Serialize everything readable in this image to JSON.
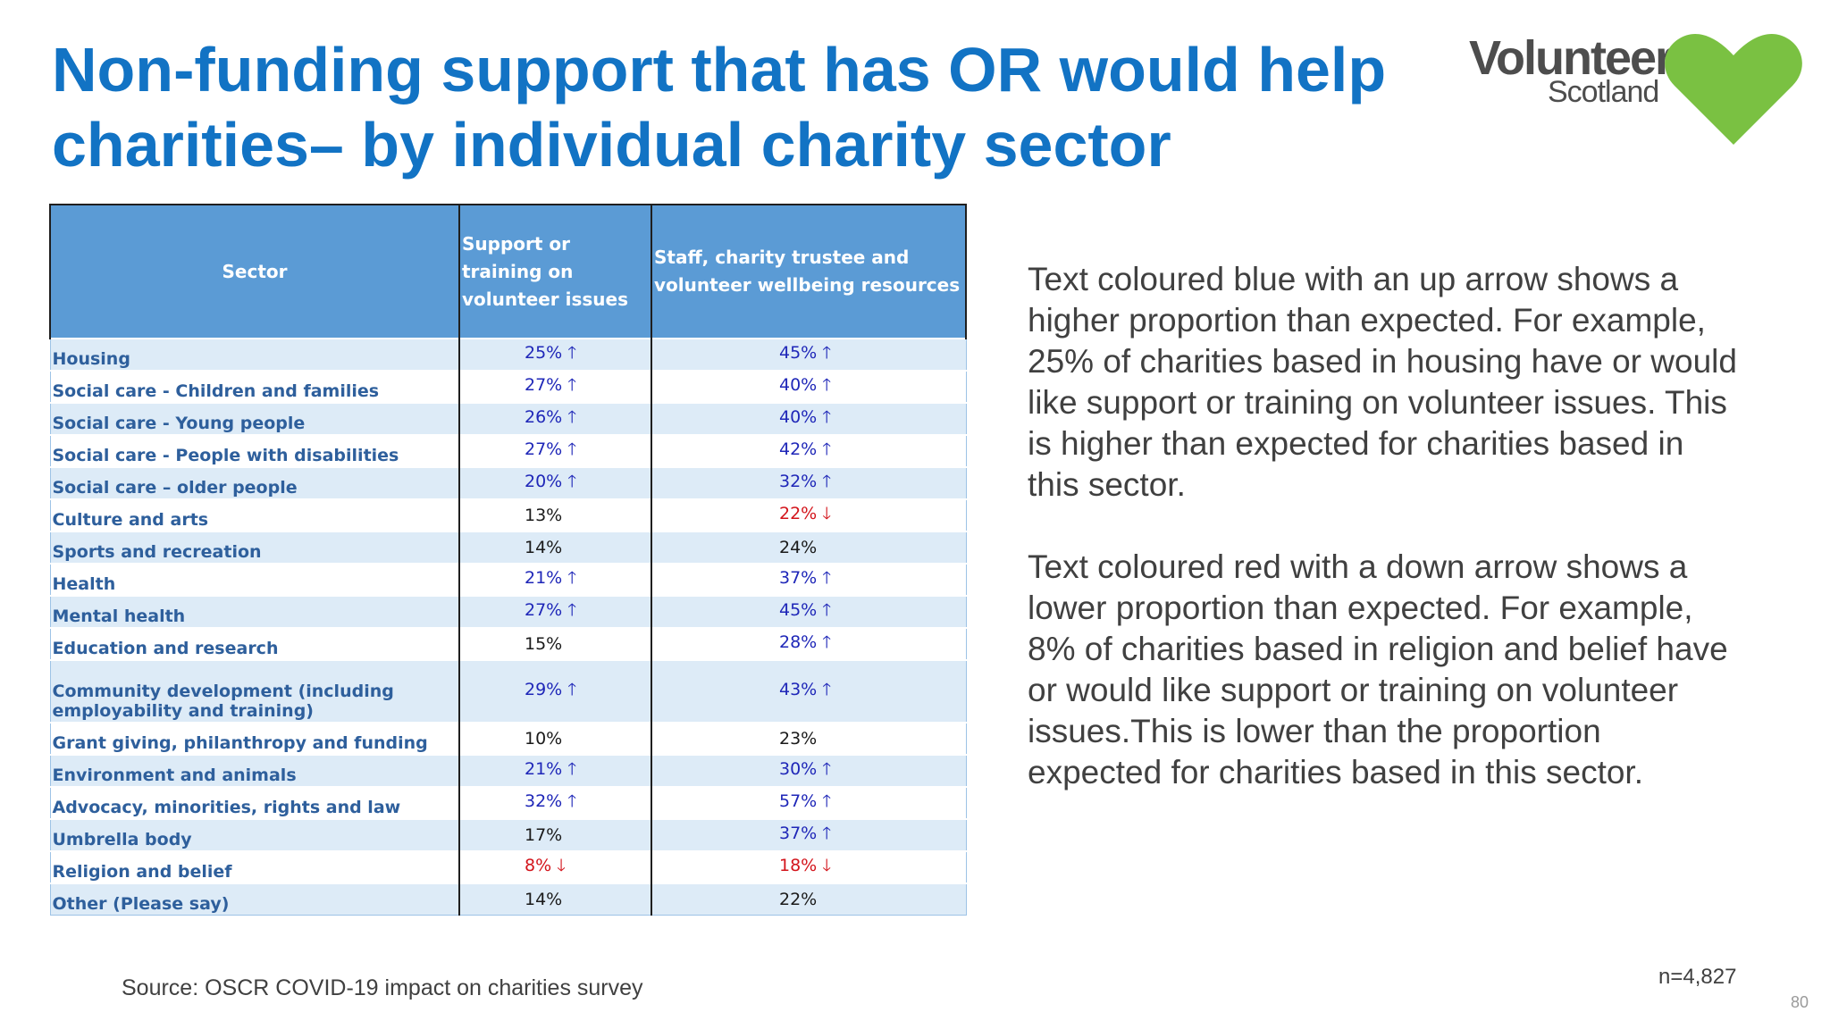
{
  "title": "Non-funding support that has OR would help charities– by individual charity sector",
  "logo": {
    "word1": "Volunteer",
    "word2": "Scotland",
    "heart_color": "#7ac142",
    "text_color": "#4d4d4d"
  },
  "colors": {
    "title": "#1273c4",
    "header_bg": "#5b9bd5",
    "band_bg": "#ddebf7",
    "higher": "#1f27b8",
    "lower": "#d3141b"
  },
  "table": {
    "headers": [
      "Sector",
      "Support or training on volunteer issues",
      "Staff, charity trustee and volunteer wellbeing resources"
    ],
    "rows": [
      {
        "sector": "Housing",
        "c2": "25% 🡑",
        "c2_dir": "up",
        "c3": "45% 🡑",
        "c3_dir": "up"
      },
      {
        "sector": "Social care - Children and families",
        "c2": "27% 🡑",
        "c2_dir": "up",
        "c3": "40% 🡑",
        "c3_dir": "up"
      },
      {
        "sector": "Social care - Young people",
        "c2": "26% 🡑",
        "c2_dir": "up",
        "c3": "40% 🡑",
        "c3_dir": "up"
      },
      {
        "sector": "Social care - People with disabilities",
        "c2": "27% 🡑",
        "c2_dir": "up",
        "c3": "42% 🡑",
        "c3_dir": "up"
      },
      {
        "sector": "Social care – older people",
        "c2": "20% 🡑",
        "c2_dir": "up",
        "c3": "32% 🡑",
        "c3_dir": "up"
      },
      {
        "sector": "Culture and arts",
        "c2": "13%",
        "c2_dir": "none",
        "c3": "22% 🡓",
        "c3_dir": "down"
      },
      {
        "sector": "Sports and recreation",
        "c2": "14%",
        "c2_dir": "none",
        "c3": "24%",
        "c3_dir": "none"
      },
      {
        "sector": "Health",
        "c2": "21% 🡑",
        "c2_dir": "up",
        "c3": "37% 🡑",
        "c3_dir": "up"
      },
      {
        "sector": "Mental health",
        "c2": "27% 🡑",
        "c2_dir": "up",
        "c3": "45% 🡑",
        "c3_dir": "up"
      },
      {
        "sector": "Education and research",
        "c2": "15%",
        "c2_dir": "none",
        "c3": "28% 🡑",
        "c3_dir": "up"
      },
      {
        "sector": "Community development (including employability and training)",
        "c2": "29% 🡑",
        "c2_dir": "up",
        "c3": "43% 🡑",
        "c3_dir": "up",
        "tall": true
      },
      {
        "sector": "Grant giving, philanthropy and funding",
        "c2": "10%",
        "c2_dir": "none",
        "c3": "23%",
        "c3_dir": "none"
      },
      {
        "sector": "Environment and animals",
        "c2": "21% 🡑",
        "c2_dir": "up",
        "c3": "30% 🡑",
        "c3_dir": "up"
      },
      {
        "sector": "Advocacy, minorities, rights and law",
        "c2": "32% 🡑",
        "c2_dir": "up",
        "c3": "57% 🡑",
        "c3_dir": "up"
      },
      {
        "sector": "Umbrella body",
        "c2": "17%",
        "c2_dir": "none",
        "c3": "37% 🡑",
        "c3_dir": "up"
      },
      {
        "sector": "Religion and belief",
        "c2": "8% 🡓",
        "c2_dir": "down",
        "c3": "18% 🡓",
        "c3_dir": "down"
      },
      {
        "sector": "Other (Please say)",
        "c2": "14%",
        "c2_dir": "none",
        "c3": "22%",
        "c3_dir": "none"
      }
    ]
  },
  "explanation": {
    "para1": "Text coloured blue with an up arrow shows a higher proportion than expected. For example, 25% of charities based in housing have or would like support or training on volunteer issues. This is higher than expected for charities based in this sector.",
    "para2": "Text coloured red with a down arrow shows a lower proportion than expected. For example, 8% of charities based in religion and belief have or would like support or training on volunteer issues.This is lower than the proportion expected for charities based in this sector."
  },
  "source": "Source: OSCR COVID-19 impact on charities survey",
  "n": "n=4,827",
  "page_number": "80"
}
